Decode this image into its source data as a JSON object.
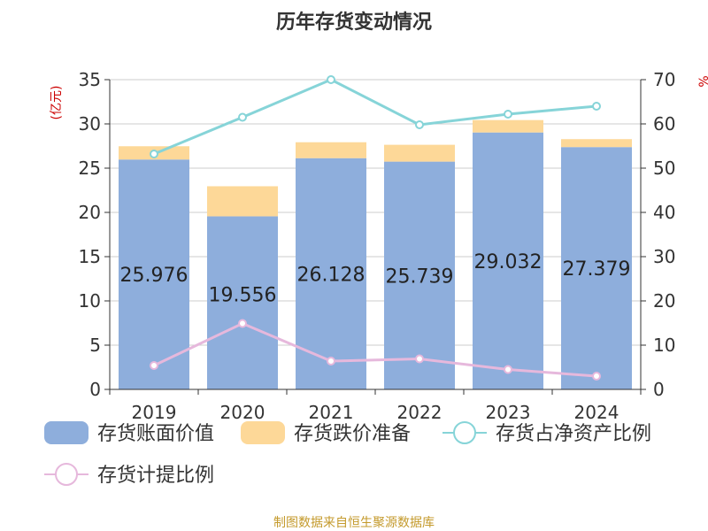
{
  "chart_data": {
    "type": "bar",
    "title": "历年存货变动情况",
    "ylabel_left": "(亿元)",
    "ylabel_right": "%",
    "categories": [
      "2019",
      "2020",
      "2021",
      "2022",
      "2023",
      "2024"
    ],
    "ylim_left": [
      0,
      35
    ],
    "yticks_left": [
      0,
      5,
      10,
      15,
      20,
      25,
      30,
      35
    ],
    "ylim_right": [
      0,
      70
    ],
    "yticks_right": [
      0,
      10,
      20,
      30,
      40,
      50,
      60,
      70
    ],
    "grid": true,
    "legend_position": "bottom",
    "stacked": true,
    "series": [
      {
        "name": "存货账面价值",
        "kind": "bar",
        "axis": "left",
        "color": "#8eaedc",
        "values": [
          25.976,
          19.556,
          26.128,
          25.739,
          29.032,
          27.379
        ],
        "labels": [
          "25.976",
          "19.556",
          "26.128",
          "25.739",
          "29.032",
          "27.379"
        ]
      },
      {
        "name": "存货跌价准备",
        "kind": "bar",
        "axis": "left",
        "color": "#fdd898",
        "values": [
          1.5,
          3.4,
          1.8,
          1.9,
          1.4,
          0.9
        ]
      },
      {
        "name": "存货占净资产比例",
        "kind": "line",
        "axis": "right",
        "color": "#86d4d8",
        "values": [
          53.2,
          61.5,
          70.0,
          59.8,
          62.2,
          64.0
        ]
      },
      {
        "name": "存货计提比例",
        "kind": "line",
        "axis": "right",
        "color": "#e6b8dc",
        "values": [
          5.4,
          14.9,
          6.4,
          6.9,
          4.5,
          3.0
        ]
      }
    ],
    "source": "制图数据来自恒生聚源数据库"
  }
}
